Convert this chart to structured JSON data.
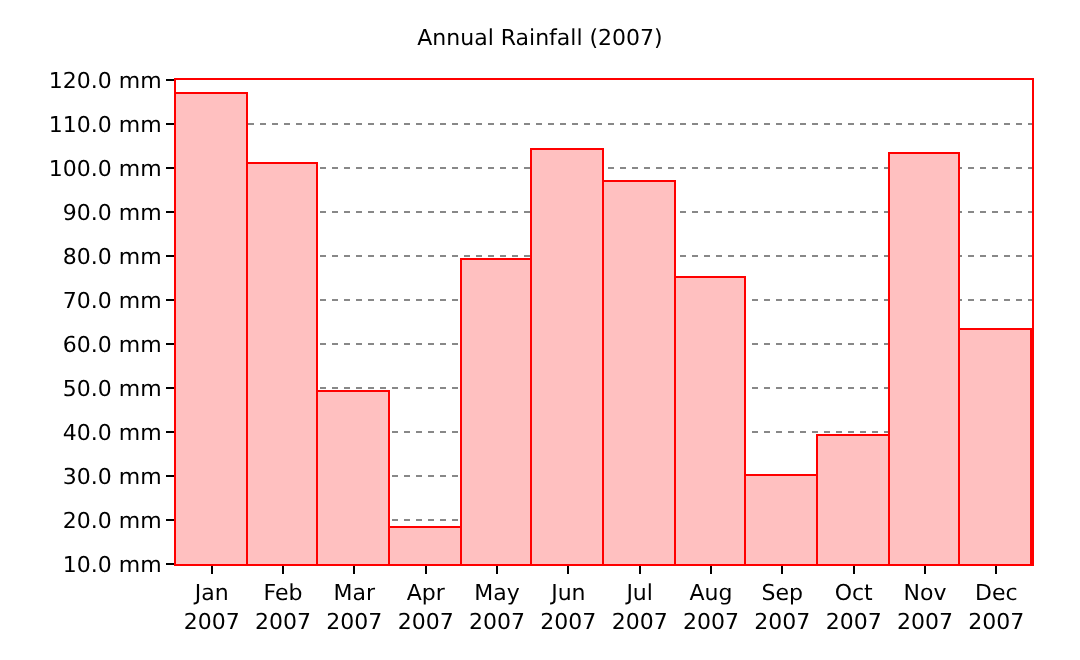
{
  "chart_data": {
    "type": "bar",
    "title": "Annual Rainfall (2007)",
    "categories": [
      "Jan\n2007",
      "Feb\n2007",
      "Mar\n2007",
      "Apr\n2007",
      "May\n2007",
      "Jun\n2007",
      "Jul\n2007",
      "Aug\n2007",
      "Sep\n2007",
      "Oct\n2007",
      "Nov\n2007",
      "Dec\n2007"
    ],
    "values": [
      117,
      101,
      49,
      18,
      79,
      104,
      97,
      75,
      30,
      39,
      103,
      63
    ],
    "color": "#ffc0c0",
    "ylim": [
      10,
      120
    ],
    "yticks": [
      {
        "value": 10,
        "label": "10.0 mm"
      },
      {
        "value": 20,
        "label": "20.0 mm"
      },
      {
        "value": 30,
        "label": "30.0 mm"
      },
      {
        "value": 40,
        "label": "40.0 mm"
      },
      {
        "value": 50,
        "label": "50.0 mm"
      },
      {
        "value": 60,
        "label": "60.0 mm"
      },
      {
        "value": 70,
        "label": "70.0 mm"
      },
      {
        "value": 80,
        "label": "80.0 mm"
      },
      {
        "value": 90,
        "label": "90.0 mm"
      },
      {
        "value": 100,
        "label": "100.0 mm"
      },
      {
        "value": 110,
        "label": "110.0 mm"
      },
      {
        "value": 120,
        "label": "120.0 mm"
      }
    ],
    "grid": "y"
  }
}
